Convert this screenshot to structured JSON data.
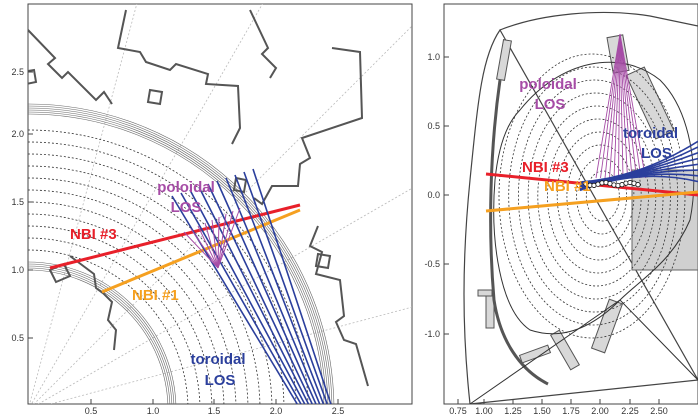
{
  "colors": {
    "poloidal": "#a64ca6",
    "toroidal": "#2b3f9c",
    "nbi3": "#e8202a",
    "nbi1": "#f5a020",
    "wall": "#555555",
    "flux": "#333333"
  },
  "left_panel": {
    "x_ticks": [
      "0.5",
      "1.0",
      "1.5",
      "2.0",
      "2.5"
    ],
    "y_ticks": [
      "0.5",
      "1.0",
      "1.5",
      "2.0",
      "2.5"
    ],
    "labels": {
      "poloidal_line1": "poloidal",
      "poloidal_line2": "LOS",
      "nbi3": "NBI #3",
      "nbi1": "NBI #1",
      "toroidal_line1": "toroidal",
      "toroidal_line2": "LOS"
    }
  },
  "right_panel": {
    "x_ticks": [
      "0.75",
      "1.00",
      "1.25",
      "1.50",
      "1.75",
      "2.00",
      "2.25",
      "2.50"
    ],
    "y_ticks": [
      "1.0",
      "0.5",
      "0.0",
      "-0.5",
      "-1.0"
    ],
    "labels": {
      "poloidal_line1": "poloidal",
      "poloidal_line2": "LOS",
      "toroidal_line1": "toroidal",
      "toroidal_line2": "LOS",
      "nbi3": "NBI #3",
      "nbi1": "NBI #1"
    }
  }
}
